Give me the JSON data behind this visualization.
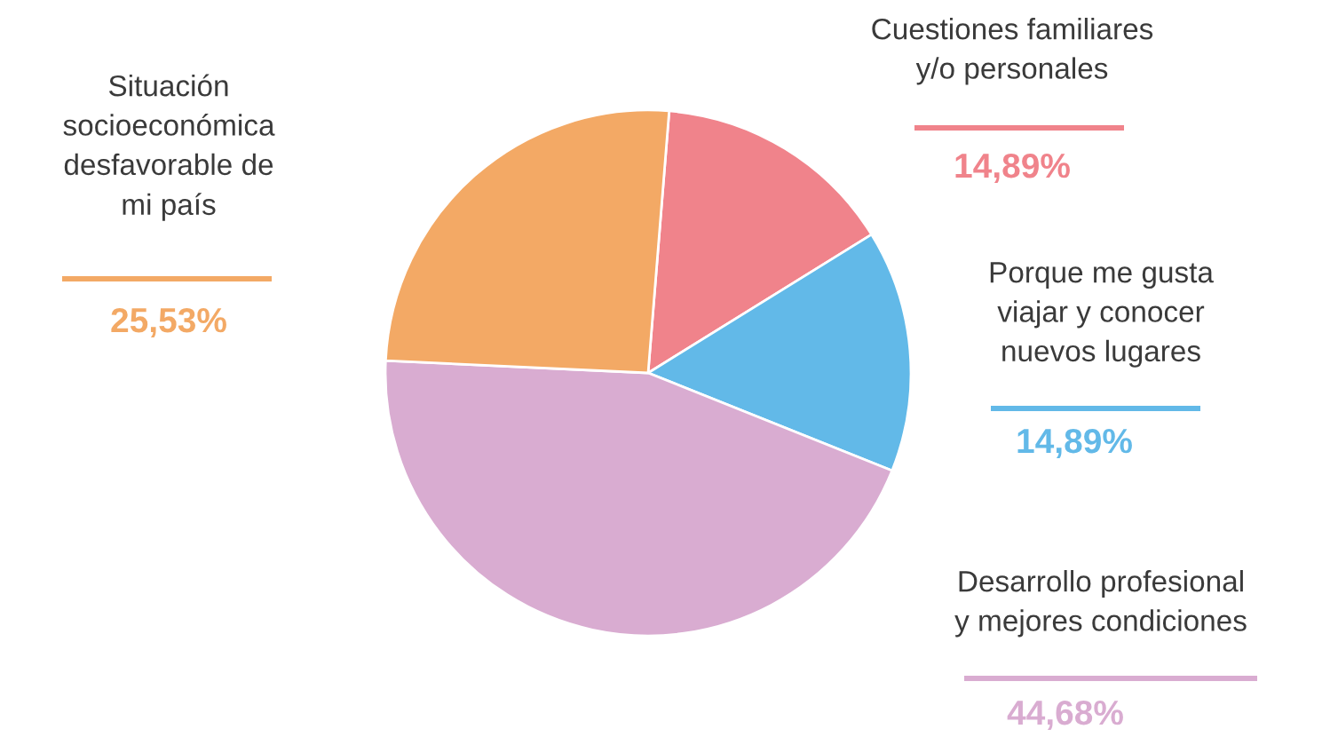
{
  "chart_data": {
    "type": "pie",
    "categories": [
      "Cuestiones familiares\ny/o personales",
      "Porque me gusta\nviajar y conocer\nnuevos lugares",
      "Desarrollo profesional\ny mejores condiciones",
      "Situación\nsocioeconómica\ndesfavorable de\nmi país"
    ],
    "values": [
      14.89,
      14.89,
      44.68,
      25.53
    ],
    "value_labels": [
      "14,89%",
      "14,89%",
      "44,68%",
      "25,53%"
    ],
    "colors": [
      "#f0838b",
      "#62b9e8",
      "#d9acd1",
      "#f3a965"
    ]
  }
}
